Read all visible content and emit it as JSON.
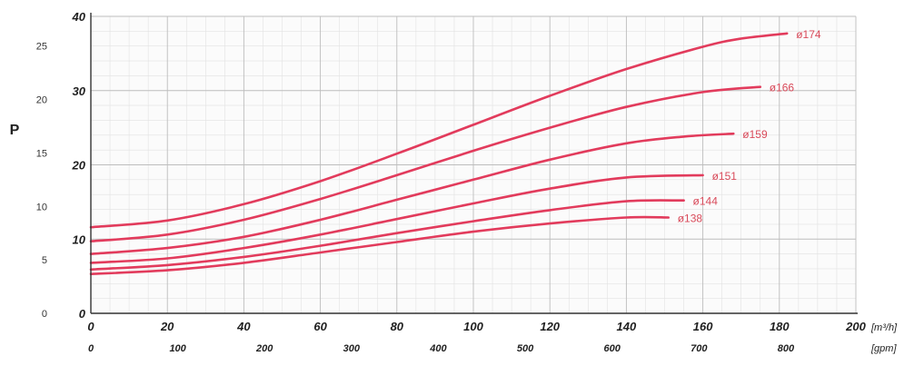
{
  "chart_data": {
    "type": "line",
    "title": "",
    "ylabel": "P",
    "x_axis": {
      "unit": "[m³/h]",
      "min": 0,
      "max": 200,
      "ticks": [
        "0",
        "20",
        "40",
        "60",
        "80",
        "100",
        "120",
        "140",
        "160",
        "180",
        "200"
      ]
    },
    "x_axis_secondary": {
      "unit": "[gpm]",
      "ticks": [
        {
          "label": "0",
          "value": 0
        },
        {
          "label": "100",
          "value": 100
        },
        {
          "label": "200",
          "value": 200
        },
        {
          "label": "300",
          "value": 300
        },
        {
          "label": "400",
          "value": 400
        },
        {
          "label": "500",
          "value": 500
        },
        {
          "label": "600",
          "value": 600
        },
        {
          "label": "700",
          "value": 700
        },
        {
          "label": "800",
          "value": 800
        }
      ]
    },
    "y_axis_inner": {
      "min": 0,
      "max": 40,
      "ticks": [
        "0",
        "10",
        "20",
        "30",
        "40"
      ]
    },
    "y_axis_outer": {
      "ticks": [
        {
          "label": "0",
          "value": 0
        },
        {
          "label": "5",
          "value": 5
        },
        {
          "label": "10",
          "value": 10
        },
        {
          "label": "15",
          "value": 15
        },
        {
          "label": "20",
          "value": 20
        },
        {
          "label": "25",
          "value": 25
        }
      ]
    },
    "grid": true,
    "line_color": "#e23b5c",
    "label_color": "#d94a5a",
    "series": [
      {
        "name": "ø174",
        "x": [
          0,
          20,
          40,
          60,
          80,
          100,
          120,
          140,
          160,
          170,
          182
        ],
        "y": [
          11.6,
          12.5,
          14.7,
          17.8,
          21.5,
          25.4,
          29.3,
          32.9,
          35.9,
          37.0,
          37.7
        ]
      },
      {
        "name": "ø166",
        "x": [
          0,
          20,
          40,
          60,
          80,
          100,
          120,
          140,
          160,
          175
        ],
        "y": [
          9.7,
          10.6,
          12.6,
          15.4,
          18.6,
          21.9,
          25.0,
          27.8,
          29.8,
          30.5
        ]
      },
      {
        "name": "ø159",
        "x": [
          0,
          20,
          40,
          60,
          80,
          100,
          120,
          140,
          155,
          168
        ],
        "y": [
          8.0,
          8.8,
          10.3,
          12.6,
          15.3,
          18.0,
          20.7,
          22.9,
          23.8,
          24.2
        ]
      },
      {
        "name": "ø151",
        "x": [
          0,
          20,
          40,
          60,
          80,
          100,
          120,
          140,
          160
        ],
        "y": [
          6.8,
          7.4,
          8.8,
          10.6,
          12.7,
          14.8,
          16.8,
          18.3,
          18.6
        ]
      },
      {
        "name": "ø144",
        "x": [
          0,
          20,
          40,
          60,
          80,
          100,
          120,
          140,
          155
        ],
        "y": [
          5.9,
          6.5,
          7.6,
          9.1,
          10.8,
          12.4,
          13.9,
          15.1,
          15.2
        ]
      },
      {
        "name": "ø138",
        "x": [
          0,
          20,
          40,
          60,
          80,
          100,
          120,
          140,
          151
        ],
        "y": [
          5.3,
          5.8,
          6.8,
          8.2,
          9.6,
          11.0,
          12.1,
          12.9,
          12.9
        ]
      }
    ]
  }
}
